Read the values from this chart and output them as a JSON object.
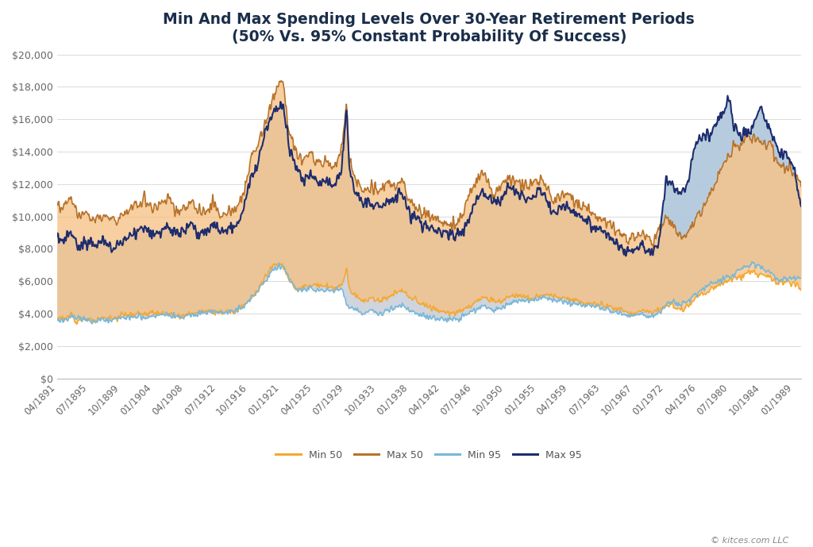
{
  "title_line1": "Min And Max Spending Levels Over 30-Year Retirement Periods",
  "title_line2": "(50% Vs. 95% Constant Probability Of Success)",
  "title_color": "#1a2e4a",
  "background_color": "#ffffff",
  "plot_bg_color": "#ffffff",
  "watermark": "© kitces.com LLC",
  "legend_labels": [
    "Min 50",
    "Max 50",
    "Min 95",
    "Max 95"
  ],
  "color_min50": "#f5a833",
  "color_max50": "#b8732a",
  "color_min95": "#7ab8d8",
  "color_max95": "#1e2d6e",
  "fill_50_color": "#f5c080",
  "fill_95_gray": "#c8cdd6",
  "fill_95_blue": "#a8c8e0",
  "ylim": [
    0,
    20000
  ],
  "ytick_step": 2000
}
